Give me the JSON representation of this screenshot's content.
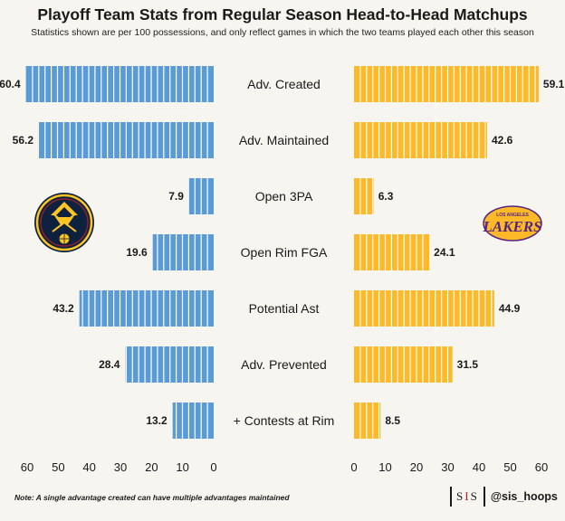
{
  "chart_data": {
    "type": "bar",
    "orientation": "horizontal",
    "layout": "back-to-back",
    "title": "Playoff Team Stats from Regular Season Head-to-Head Matchups",
    "subtitle": "Statistics shown are per 100 possessions, and only reflect games in which the two teams played each other this season",
    "categories": [
      "Adv. Created",
      "Adv. Maintained",
      "Open 3PA",
      "Open Rim FGA",
      "Potential Ast",
      "Adv. Prevented",
      "+ Contests at Rim"
    ],
    "series": [
      {
        "values": [
          60.4,
          56.2,
          7.9,
          19.6,
          43.2,
          28.4,
          13.2
        ],
        "color": "#5b9bd5",
        "side": "left"
      },
      {
        "values": [
          59.1,
          42.6,
          6.3,
          24.1,
          44.9,
          31.5,
          8.5
        ],
        "color": "#fdb927",
        "side": "right"
      }
    ],
    "xlim": [
      0,
      60
    ],
    "xticks": [
      0,
      10,
      20,
      30,
      40,
      50,
      60
    ],
    "xlabel": "",
    "ylabel": "",
    "grid": false,
    "logos": [
      "denver-nuggets-logo",
      "los-angeles-lakers-logo"
    ],
    "lakers_logo_text": [
      "LOS ANGELES",
      "LAKERS"
    ]
  },
  "note": "Note: A single advantage created can have multiple advantages maintained",
  "brand": {
    "logo_left": "S",
    "logo_mid": "I",
    "logo_right": "S",
    "handle": "@sis_hoops"
  }
}
